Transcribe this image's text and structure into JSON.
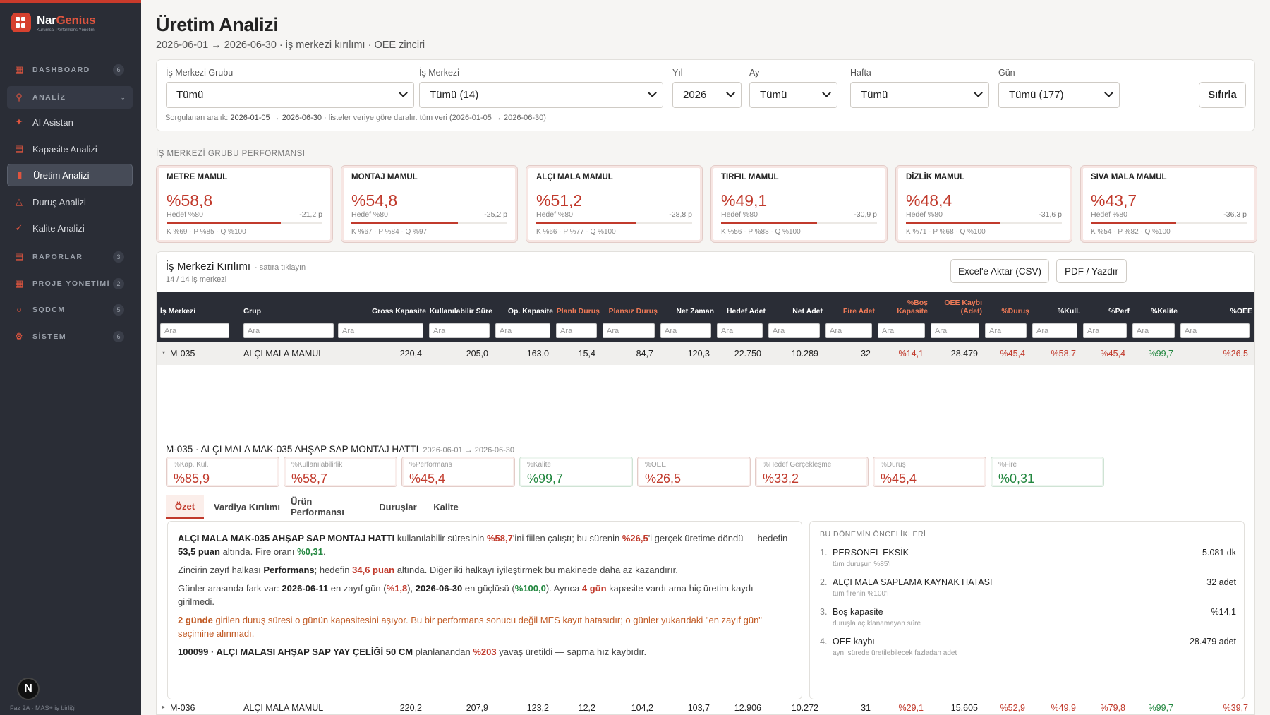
{
  "app": {
    "name_a": "Nar",
    "name_b": "Genius",
    "tagline": "Kurumsal Performans Yönetimi"
  },
  "sidebar": {
    "dashboard": {
      "label": "DASHBOARD",
      "count": "6"
    },
    "analiz": {
      "label": "ANALİZ"
    },
    "items": [
      {
        "label": "AI Asistan"
      },
      {
        "label": "Kapasite Analizi"
      },
      {
        "label": "Üretim Analizi"
      },
      {
        "label": "Duruş Analizi"
      },
      {
        "label": "Kalite Analizi"
      }
    ],
    "raporlar": {
      "label": "RAPORLAR",
      "count": "3"
    },
    "proje": {
      "label": "PROJE YÖNETİMİ",
      "count": "2"
    },
    "sqdcm": {
      "label": "SQDCM",
      "count": "5"
    },
    "sistem": {
      "label": "SİSTEM",
      "count": "6"
    },
    "avatar": "N",
    "footer": "Faz 2A · MAS+ iş birliği"
  },
  "page": {
    "title": "Üretim Analizi",
    "subtitle": "2026-06-01 → 2026-06-30 · iş merkezi kırılımı · OEE zinciri"
  },
  "filters": {
    "group_label": "İş Merkezi Grubu",
    "group_value": "Tümü",
    "center_label": "İş Merkezi",
    "center_value": "Tümü (14)",
    "year_label": "Yıl",
    "year_value": "2026",
    "month_label": "Ay",
    "month_value": "Tümü",
    "week_label": "Hafta",
    "week_value": "Tümü",
    "day_label": "Gün",
    "day_value": "Tümü (177)",
    "reset": "Sıfırla",
    "note_prefix": "Sorgulanan aralık: ",
    "note_range": "2026-01-05 → 2026-06-30",
    "note_mid": " · listeler veriye göre daralır. ",
    "note_link": "tüm veri (2026-01-05 → 2026-06-30)"
  },
  "groups_title": "İŞ MERKEZİ GRUBU PERFORMANSI",
  "groups": [
    {
      "name": "METRE MAMUL",
      "value": "%58,8",
      "target": "Hedef %80",
      "gap": "-21,2 p",
      "fill": 0.735,
      "kpq": "K %69 · P %85 · Q %100"
    },
    {
      "name": "MONTAJ MAMUL",
      "value": "%54,8",
      "target": "Hedef %80",
      "gap": "-25,2 p",
      "fill": 0.685,
      "kpq": "K %67 · P %84 · Q %97"
    },
    {
      "name": "ALÇI MALA MAMUL",
      "value": "%51,2",
      "target": "Hedef %80",
      "gap": "-28,8 p",
      "fill": 0.64,
      "kpq": "K %66 · P %77 · Q %100"
    },
    {
      "name": "TIRFIL MAMUL",
      "value": "%49,1",
      "target": "Hedef %80",
      "gap": "-30,9 p",
      "fill": 0.614,
      "kpq": "K %56 · P %88 · Q %100"
    },
    {
      "name": "DİZLİK MAMUL",
      "value": "%48,4",
      "target": "Hedef %80",
      "gap": "-31,6 p",
      "fill": 0.605,
      "kpq": "K %71 · P %68 · Q %100"
    },
    {
      "name": "SIVA MALA MAMUL",
      "value": "%43,7",
      "target": "Hedef %80",
      "gap": "-36,3 p",
      "fill": 0.546,
      "kpq": "K %54 · P %82 · Q %100"
    }
  ],
  "table": {
    "title": "İş Merkezi Kırılımı",
    "hint": "· satıra tıklayın",
    "count": "14 / 14 iş merkezi",
    "excel": "Excel'e Aktar (CSV)",
    "pdf": "PDF / Yazdır",
    "filter_placeholder": "Ara",
    "columns": [
      "İş Merkezi",
      "Grup",
      "Gross Kapasite",
      "Kullanılabilir Süre",
      "Op. Kapasite",
      "Planlı Duruş",
      "Plansız Duruş",
      "Net Zaman",
      "Hedef Adet",
      "Net Adet",
      "Fire Adet",
      "%Boş Kapasite",
      "OEE Kaybı (Adet)",
      "%Duruş",
      "%Kull.",
      "%Perf",
      "%Kalite",
      "%OEE"
    ],
    "rows": [
      [
        "M-035",
        "ALÇI MALA MAMUL",
        "220,4",
        "205,0",
        "163,0",
        "15,4",
        "84,7",
        "120,3",
        "22.750",
        "10.289",
        "32",
        "%14,1",
        "28.479",
        "%45,4",
        "%58,7",
        "%45,4",
        "%99,7",
        "%26,5"
      ],
      [
        "M-036",
        "ALÇI MALA MAMUL",
        "220,2",
        "207,9",
        "123,2",
        "12,2",
        "104,2",
        "103,7",
        "12.906",
        "10.272",
        "31",
        "%29,1",
        "15.605",
        "%52,9",
        "%49,9",
        "%79,8",
        "%99,7",
        "%39,7"
      ]
    ]
  },
  "detail": {
    "title": "M-035 · ALÇI MALA MAK-035 AHŞAP SAP MONTAJ HATTI",
    "range": "2026-06-01 → 2026-06-30",
    "kpis": [
      {
        "label": "%Kap. Kul.",
        "value": "%85,9",
        "tone": "red"
      },
      {
        "label": "%Kullanılabilirlik",
        "value": "%58,7",
        "tone": "red"
      },
      {
        "label": "%Performans",
        "value": "%45,4",
        "tone": "red"
      },
      {
        "label": "%Kalite",
        "value": "%99,7",
        "tone": "green"
      },
      {
        "label": "%OEE",
        "value": "%26,5",
        "tone": "red"
      },
      {
        "label": "%Hedef Gerçekleşme",
        "value": "%33,2",
        "tone": "red"
      },
      {
        "label": "%Duruş",
        "value": "%45,4",
        "tone": "red"
      },
      {
        "label": "%Fire",
        "value": "%0,31",
        "tone": "green"
      }
    ],
    "tabs": [
      "Özet",
      "Vardiya Kırılımı",
      "Ürün Performansı",
      "Duruşlar",
      "Kalite"
    ],
    "summary": {
      "p1": {
        "a": "ALÇI MALA MAK-035 AHŞAP SAP MONTAJ HATTI",
        "b": " kullanılabilir süresinin ",
        "c": "%58,7",
        "d": "'ini fiilen çalıştı; bu sürenin ",
        "e": "%26,5",
        "f": "'i gerçek üretime döndü — hedefin ",
        "g": "53,5 puan",
        "h": " altında. Fire oranı ",
        "i": "%0,31",
        "j": "."
      },
      "p2": {
        "a": "Zincirin zayıf halkası ",
        "b": "Performans",
        "c": "; hedefin ",
        "d": "34,6 puan",
        "e": " altında. Diğer iki halkayı iyileştirmek bu makinede daha az kazandırır."
      },
      "p3": {
        "a": "Günler arasında fark var: ",
        "b": "2026-06-11",
        "c": " en zayıf gün (",
        "d": "%1,8",
        "e": "), ",
        "f": "2026-06-30",
        "g": " en güçlüsü (",
        "h": "%100,0",
        "i": "). Ayrıca ",
        "j": "4 gün",
        "k": " kapasite vardı ama hiç üretim kaydı girilmedi."
      },
      "p4": {
        "a": "2 günde",
        "b": " girilen duruş süresi o günün kapasitesini aşıyor. Bu bir performans sonucu değil MES kayıt hatasıdır; o günler yukarıdaki \"en zayıf gün\" seçimine alınmadı."
      },
      "p5": {
        "a": "100099 · ALÇI MALASI AHŞAP SAP YAY ÇELİĞİ 50 CM",
        "b": " planlanandan ",
        "c": "%203",
        "d": " yavaş üretildi — sapma hız kaybıdır."
      }
    },
    "priorities_title": "BU DÖNEMİN ÖNCELİKLERİ",
    "priorities": [
      {
        "num": "1.",
        "name": "PERSONEL EKSİK",
        "sub": "tüm duruşun %85'i",
        "value": "5.081 dk"
      },
      {
        "num": "2.",
        "name": "ALÇI MALA SAPLAMA KAYNAK HATASI",
        "sub": "tüm firenin %100'ı",
        "value": "32 adet"
      },
      {
        "num": "3.",
        "name": "Boş kapasite",
        "sub": "duruşla açıklanamayan süre",
        "value": "%14,1"
      },
      {
        "num": "4.",
        "name": "OEE kaybı",
        "sub": "aynı sürede üretilebilecek fazladan adet",
        "value": "28.479 adet"
      }
    ]
  },
  "colors": {
    "accent": "#c13a2c",
    "good": "#22873f",
    "sidebar": "#2a2d36"
  }
}
